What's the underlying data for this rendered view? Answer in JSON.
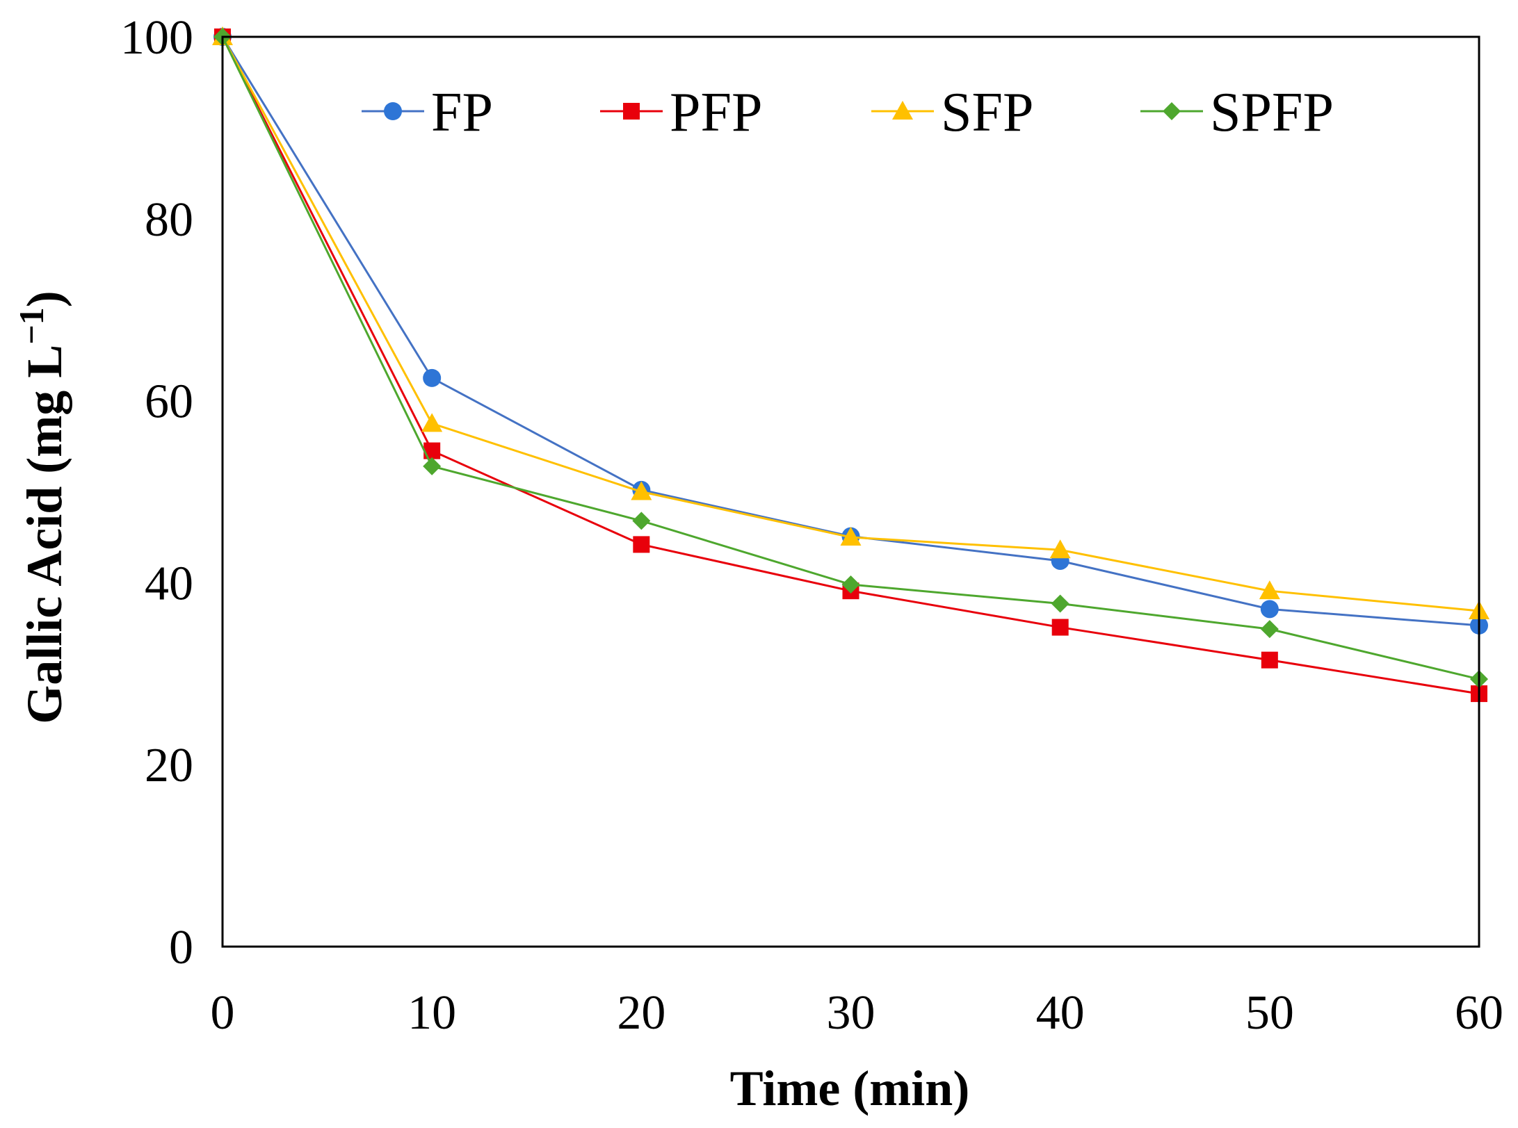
{
  "chart_data": {
    "type": "line",
    "title": "",
    "xlabel": "Time (min)",
    "ylabel": "Gallic Acid (mg L",
    "ylabel_sup": "−1",
    "ylabel_close": ")",
    "xlim": [
      0,
      60
    ],
    "ylim": [
      0,
      100
    ],
    "x": [
      0,
      10,
      20,
      30,
      40,
      50,
      60
    ],
    "xticks": [
      "0",
      "10",
      "20",
      "30",
      "40",
      "50",
      "60"
    ],
    "yticks": [
      "0",
      "20",
      "40",
      "60",
      "80",
      "100"
    ],
    "grid": false,
    "legend_position": "top",
    "series": [
      {
        "name": "FP",
        "marker": "circle",
        "color": "#4472C4",
        "marker_color": "#2E75D6",
        "values": [
          100,
          62.5,
          50.2,
          45.1,
          42.4,
          37.1,
          35.3
        ]
      },
      {
        "name": "PFP",
        "marker": "square",
        "color": "#E8000B",
        "marker_color": "#E8000B",
        "values": [
          100,
          54.5,
          44.2,
          39.1,
          35.1,
          31.5,
          27.8
        ]
      },
      {
        "name": "SFP",
        "marker": "triangle",
        "color": "#FFC000",
        "marker_color": "#FFC000",
        "values": [
          100,
          57.5,
          50.0,
          45.0,
          43.6,
          39.1,
          36.9
        ]
      },
      {
        "name": "SPFP",
        "marker": "diamond",
        "color": "#4EA72E",
        "marker_color": "#4EA72E",
        "values": [
          100,
          52.8,
          46.8,
          39.8,
          37.7,
          34.9,
          29.4
        ]
      }
    ]
  }
}
